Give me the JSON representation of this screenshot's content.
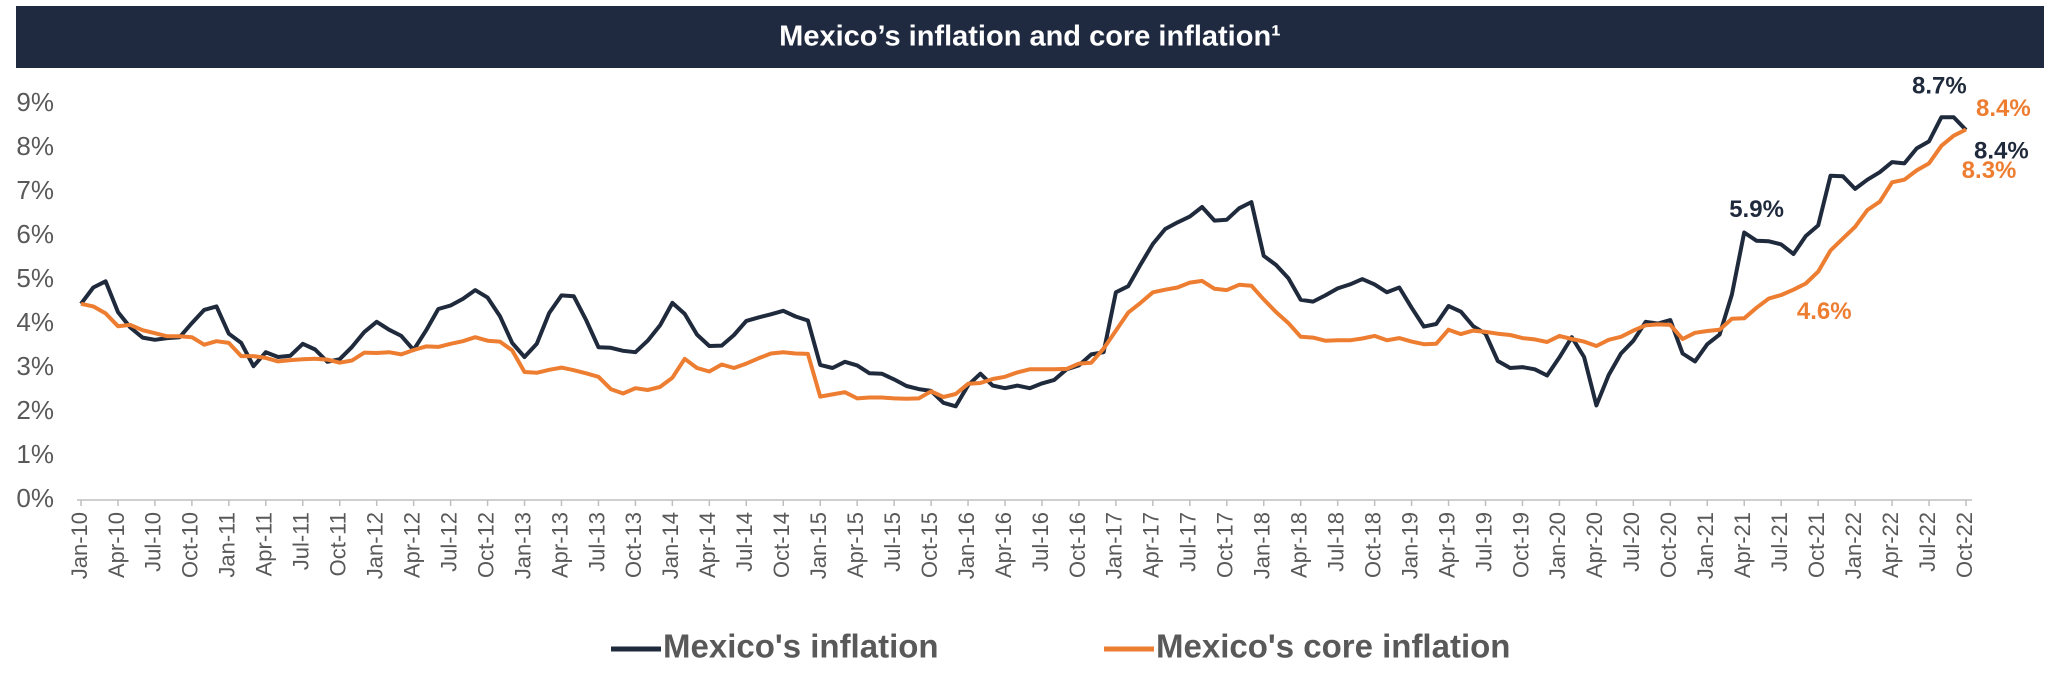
{
  "chart_data": {
    "type": "line",
    "title": "Mexico’s inflation and core inflation¹",
    "categories": [
      "Jan-10",
      null,
      null,
      "Apr-10",
      null,
      null,
      "Jul-10",
      null,
      null,
      "Oct-10",
      null,
      null,
      "Jan-11",
      null,
      null,
      "Apr-11",
      null,
      null,
      "Jul-11",
      null,
      null,
      "Oct-11",
      null,
      null,
      "Jan-12",
      null,
      null,
      "Apr-12",
      null,
      null,
      "Jul-12",
      null,
      null,
      "Oct-12",
      null,
      null,
      "Jan-13",
      null,
      null,
      "Apr-13",
      null,
      null,
      "Jul-13",
      null,
      null,
      "Oct-13",
      null,
      null,
      "Jan-14",
      null,
      null,
      "Apr-14",
      null,
      null,
      "Jul-14",
      null,
      null,
      "Oct-14",
      null,
      null,
      "Jan-15",
      null,
      null,
      "Apr-15",
      null,
      null,
      "Jul-15",
      null,
      null,
      "Oct-15",
      null,
      null,
      "Jan-16",
      null,
      null,
      "Apr-16",
      null,
      null,
      "Jul-16",
      null,
      null,
      "Oct-16",
      null,
      null,
      "Jan-17",
      null,
      null,
      "Apr-17",
      null,
      null,
      "Jul-17",
      null,
      null,
      "Oct-17",
      null,
      null,
      "Jan-18",
      null,
      null,
      "Apr-18",
      null,
      null,
      "Jul-18",
      null,
      null,
      "Oct-18",
      null,
      null,
      "Jan-19",
      null,
      null,
      "Apr-19",
      null,
      null,
      "Jul-19",
      null,
      null,
      "Oct-19",
      null,
      null,
      "Jan-20",
      null,
      null,
      "Apr-20",
      null,
      null,
      "Jul-20",
      null,
      null,
      "Oct-20",
      null,
      null,
      "Jan-21",
      null,
      null,
      "Apr-21",
      null,
      null,
      "Jul-21",
      null,
      null,
      "Oct-21",
      null,
      null,
      "Jan-22",
      null,
      null,
      "Apr-22",
      null,
      null,
      "Jul-22",
      null,
      null,
      "Oct-22"
    ],
    "series": [
      {
        "name": "Mexico's inflation",
        "color": "#1f2a3c",
        "values": [
          4.46,
          4.83,
          4.97,
          4.27,
          3.92,
          3.69,
          3.64,
          3.68,
          3.7,
          4.02,
          4.32,
          4.4,
          3.78,
          3.57,
          3.04,
          3.36,
          3.25,
          3.28,
          3.55,
          3.42,
          3.14,
          3.2,
          3.48,
          3.82,
          4.05,
          3.87,
          3.73,
          3.41,
          3.85,
          4.34,
          4.42,
          4.57,
          4.77,
          4.6,
          4.18,
          3.57,
          3.25,
          3.55,
          4.25,
          4.65,
          4.63,
          4.09,
          3.47,
          3.46,
          3.39,
          3.36,
          3.62,
          3.97,
          4.48,
          4.23,
          3.76,
          3.5,
          3.51,
          3.75,
          4.07,
          4.15,
          4.22,
          4.3,
          4.17,
          4.08,
          3.07,
          3.0,
          3.14,
          3.06,
          2.88,
          2.87,
          2.74,
          2.59,
          2.52,
          2.48,
          2.21,
          2.13,
          2.61,
          2.87,
          2.6,
          2.54,
          2.6,
          2.54,
          2.65,
          2.73,
          2.97,
          3.06,
          3.31,
          3.36,
          4.72,
          4.86,
          5.35,
          5.82,
          6.16,
          6.31,
          6.44,
          6.66,
          6.35,
          6.37,
          6.63,
          6.77,
          5.55,
          5.34,
          5.04,
          4.55,
          4.51,
          4.65,
          4.81,
          4.9,
          5.02,
          4.9,
          4.72,
          4.83,
          4.37,
          3.94,
          4.0,
          4.41,
          4.28,
          3.95,
          3.78,
          3.16,
          3.0,
          3.02,
          2.97,
          2.83,
          3.24,
          3.7,
          3.25,
          2.15,
          2.84,
          3.33,
          3.62,
          4.05,
          4.01,
          4.09,
          3.33,
          3.15,
          3.54,
          3.76,
          4.67,
          6.08,
          5.89,
          5.88,
          5.81,
          5.59,
          6.0,
          6.24,
          7.37,
          7.36,
          7.07,
          7.28,
          7.45,
          7.68,
          7.65,
          7.99,
          8.15,
          8.7,
          8.7,
          8.41
        ],
        "value_labels": [
          null,
          null,
          null,
          null,
          null,
          null,
          null,
          null,
          null,
          null,
          null,
          null,
          null,
          null,
          null,
          null,
          null,
          null,
          null,
          null,
          null,
          null,
          null,
          null,
          null,
          null,
          null,
          null,
          null,
          null,
          null,
          null,
          null,
          null,
          null,
          null,
          null,
          null,
          null,
          null,
          null,
          null,
          null,
          null,
          null,
          null,
          null,
          null,
          null,
          null,
          null,
          null,
          null,
          null,
          null,
          null,
          null,
          null,
          null,
          null,
          null,
          null,
          null,
          null,
          null,
          null,
          null,
          null,
          null,
          null,
          null,
          null,
          null,
          null,
          null,
          null,
          null,
          null,
          null,
          null,
          null,
          null,
          null,
          null,
          null,
          null,
          null,
          null,
          null,
          null,
          null,
          null,
          null,
          null,
          null,
          null,
          null,
          null,
          null,
          null,
          null,
          null,
          null,
          null,
          null,
          null,
          null,
          null,
          null,
          null,
          null,
          null,
          null,
          null,
          null,
          null,
          null,
          null,
          null,
          null,
          null,
          null,
          null,
          null,
          null,
          null,
          null,
          null,
          null,
          null,
          null,
          null,
          null,
          null,
          null,
          null,
          "5.9%",
          null,
          null,
          null,
          null,
          null,
          null,
          null,
          null,
          null,
          null,
          null,
          null,
          null,
          null,
          "8.7%",
          null,
          "8.4%"
        ]
      },
      {
        "name": "Mexico's core inflation",
        "color": "#ed7d31",
        "values": [
          4.46,
          4.4,
          4.24,
          3.95,
          3.98,
          3.86,
          3.79,
          3.72,
          3.72,
          3.7,
          3.53,
          3.61,
          3.57,
          3.27,
          3.27,
          3.23,
          3.15,
          3.18,
          3.2,
          3.21,
          3.19,
          3.12,
          3.17,
          3.35,
          3.34,
          3.36,
          3.31,
          3.41,
          3.49,
          3.48,
          3.55,
          3.61,
          3.7,
          3.62,
          3.6,
          3.4,
          2.91,
          2.89,
          2.96,
          3.01,
          2.95,
          2.88,
          2.8,
          2.52,
          2.42,
          2.54,
          2.5,
          2.57,
          2.78,
          3.21,
          3.0,
          2.92,
          3.08,
          3.0,
          3.1,
          3.22,
          3.33,
          3.36,
          3.33,
          3.32,
          2.35,
          2.4,
          2.45,
          2.31,
          2.33,
          2.33,
          2.31,
          2.3,
          2.31,
          2.47,
          2.34,
          2.41,
          2.64,
          2.66,
          2.75,
          2.8,
          2.9,
          2.97,
          2.97,
          2.97,
          2.98,
          3.1,
          3.12,
          3.44,
          3.85,
          4.26,
          4.48,
          4.72,
          4.78,
          4.83,
          4.94,
          4.98,
          4.8,
          4.77,
          4.89,
          4.87,
          4.56,
          4.27,
          4.02,
          3.71,
          3.69,
          3.62,
          3.63,
          3.63,
          3.67,
          3.73,
          3.63,
          3.68,
          3.6,
          3.54,
          3.55,
          3.87,
          3.77,
          3.85,
          3.82,
          3.78,
          3.75,
          3.68,
          3.65,
          3.59,
          3.73,
          3.66,
          3.6,
          3.5,
          3.64,
          3.71,
          3.85,
          3.97,
          3.99,
          3.98,
          3.66,
          3.8,
          3.84,
          3.87,
          4.12,
          4.13,
          4.37,
          4.58,
          4.66,
          4.78,
          4.92,
          5.19,
          5.67,
          5.94,
          6.21,
          6.59,
          6.78,
          7.22,
          7.28,
          7.49,
          7.65,
          8.05,
          8.28,
          8.42
        ],
        "value_labels": [
          null,
          null,
          null,
          null,
          null,
          null,
          null,
          null,
          null,
          null,
          null,
          null,
          null,
          null,
          null,
          null,
          null,
          null,
          null,
          null,
          null,
          null,
          null,
          null,
          null,
          null,
          null,
          null,
          null,
          null,
          null,
          null,
          null,
          null,
          null,
          null,
          null,
          null,
          null,
          null,
          null,
          null,
          null,
          null,
          null,
          null,
          null,
          null,
          null,
          null,
          null,
          null,
          null,
          null,
          null,
          null,
          null,
          null,
          null,
          null,
          null,
          null,
          null,
          null,
          null,
          null,
          null,
          null,
          null,
          null,
          null,
          null,
          null,
          null,
          null,
          null,
          null,
          null,
          null,
          null,
          null,
          null,
          null,
          null,
          null,
          null,
          null,
          null,
          null,
          null,
          null,
          null,
          null,
          null,
          null,
          null,
          null,
          null,
          null,
          null,
          null,
          null,
          null,
          null,
          null,
          null,
          null,
          null,
          null,
          null,
          null,
          null,
          null,
          null,
          null,
          null,
          null,
          null,
          null,
          null,
          null,
          null,
          null,
          null,
          null,
          null,
          null,
          null,
          null,
          null,
          null,
          null,
          null,
          null,
          null,
          null,
          null,
          "4.6%",
          null,
          null,
          null,
          null,
          null,
          null,
          null,
          null,
          null,
          null,
          null,
          null,
          null,
          null,
          "8.3%",
          "8.4%"
        ]
      }
    ],
    "ylim": [
      0,
      9
    ],
    "yticks": [
      {
        "value": 0,
        "label": "0%"
      },
      {
        "value": 1,
        "label": "1%"
      },
      {
        "value": 2,
        "label": "2%"
      },
      {
        "value": 3,
        "label": "3%"
      },
      {
        "value": 4,
        "label": "4%"
      },
      {
        "value": 5,
        "label": "5%"
      },
      {
        "value": 6,
        "label": "6%"
      },
      {
        "value": 7,
        "label": "7%"
      },
      {
        "value": 8,
        "label": "8%"
      },
      {
        "value": 9,
        "label": "9%"
      }
    ],
    "grid": false
  }
}
